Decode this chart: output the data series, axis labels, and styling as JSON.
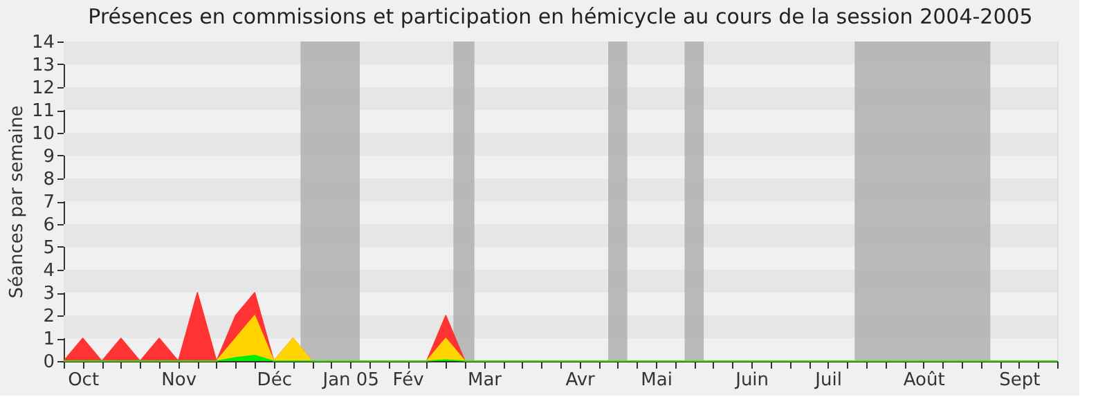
{
  "chart_data": {
    "type": "area",
    "title": "Présences en commissions et participation en hémicycle au cours de la session 2004-2005",
    "ylabel": "Séances par semaine",
    "categories": [
      null,
      "Oct",
      null,
      null,
      null,
      null,
      "Nov",
      null,
      null,
      null,
      null,
      "Déc",
      null,
      null,
      null,
      "Jan 05",
      null,
      null,
      "Fév",
      null,
      null,
      null,
      "Mar",
      null,
      null,
      null,
      null,
      "Avr",
      null,
      null,
      null,
      "Mai",
      null,
      null,
      null,
      null,
      "Juin",
      null,
      null,
      null,
      "Juil",
      null,
      null,
      null,
      null,
      "Août",
      null,
      null,
      null,
      null,
      "Sept",
      null,
      null
    ],
    "stacked": true,
    "series": [
      {
        "color": "#00ee00",
        "values": [
          0,
          0,
          0,
          0,
          0,
          0,
          0,
          0,
          0,
          0.15,
          0.25,
          0,
          0,
          0,
          0,
          0,
          0,
          0,
          0,
          0,
          0.05,
          0,
          0,
          0,
          0,
          0,
          0,
          0,
          0,
          0,
          0,
          0,
          0,
          0,
          0,
          0,
          0,
          0,
          0,
          0,
          0,
          0,
          0,
          0,
          0,
          0,
          0,
          0,
          0,
          0,
          0,
          0,
          0
        ]
      },
      {
        "color": "#ffd400",
        "values": [
          0,
          0,
          0,
          0,
          0,
          0,
          0,
          0,
          0,
          0.85,
          1.75,
          0,
          1,
          0,
          0,
          0,
          0,
          0,
          0,
          0,
          0.95,
          0,
          0,
          0,
          0,
          0,
          0,
          0,
          0,
          0,
          0,
          0,
          0,
          0,
          0,
          0,
          0,
          0,
          0,
          0,
          0,
          0,
          0,
          0,
          0,
          0,
          0,
          0,
          0,
          0,
          0,
          0,
          0
        ]
      },
      {
        "color": "#ff3333",
        "values": [
          0,
          1,
          0,
          1,
          0,
          1,
          0,
          3,
          0,
          1,
          1,
          0,
          0,
          0,
          0,
          0,
          0,
          0,
          0,
          0,
          1,
          0,
          0,
          0,
          0,
          0,
          0,
          0,
          0,
          0,
          0,
          0,
          0,
          0,
          0,
          0,
          0,
          0,
          0,
          0,
          0,
          0,
          0,
          0,
          0,
          0,
          0,
          0,
          0,
          0,
          0,
          0,
          0
        ]
      }
    ],
    "ylim": [
      0,
      14
    ],
    "yticks": [
      0,
      1,
      2,
      3,
      4,
      5,
      6,
      7,
      8,
      9,
      10,
      11,
      12,
      13,
      14
    ]
  }
}
